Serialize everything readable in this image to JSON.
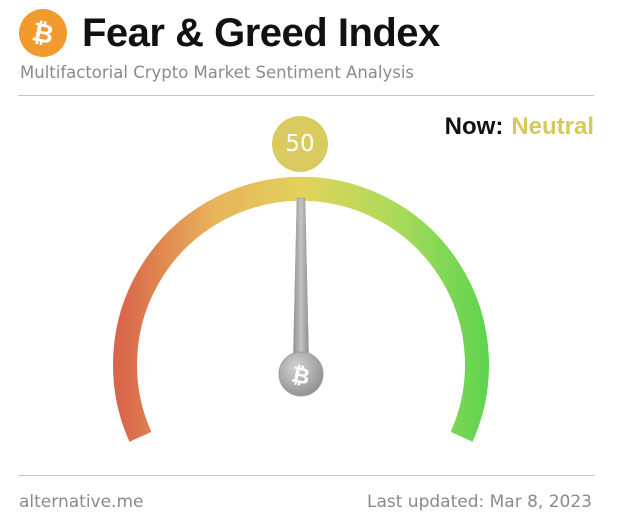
{
  "header": {
    "logo_icon": "bitcoin-icon",
    "title": "Fear & Greed Index",
    "subtitle": "Multifactorial Crypto Market Sentiment Analysis"
  },
  "status": {
    "now_label": "Now:",
    "classification": "Neutral",
    "classification_color": "#d6c85c"
  },
  "gauge": {
    "value": 50,
    "min": 0,
    "max": 100,
    "value_label": "50",
    "scale_colors": [
      "#d9654b",
      "#e8b25a",
      "#e2d35b",
      "#a9da5a",
      "#5bd44f"
    ],
    "hub_icon": "bitcoin-icon"
  },
  "footer": {
    "source": "alternative.me",
    "last_updated": "Last updated: Mar 8, 2023"
  }
}
